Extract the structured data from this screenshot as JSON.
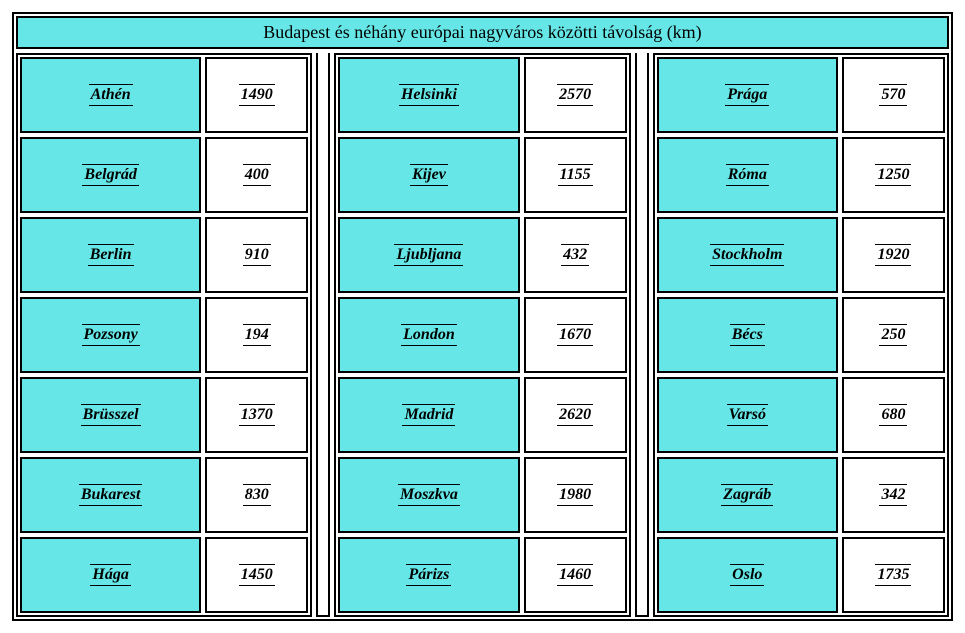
{
  "title": "Budapest és néhány európai nagyváros közötti távolság (km)",
  "colors": {
    "accent": "#66e6e6",
    "border": "#000000",
    "white": "#ffffff"
  },
  "columns": [
    [
      {
        "city": "Athén",
        "distance": "1490"
      },
      {
        "city": "Belgrád",
        "distance": "400"
      },
      {
        "city": "Berlin",
        "distance": "910"
      },
      {
        "city": "Pozsony",
        "distance": "194"
      },
      {
        "city": "Brüsszel",
        "distance": "1370"
      },
      {
        "city": "Bukarest",
        "distance": "830"
      },
      {
        "city": "Hága",
        "distance": "1450"
      }
    ],
    [
      {
        "city": "Helsinki",
        "distance": "2570"
      },
      {
        "city": "Kijev",
        "distance": "1155"
      },
      {
        "city": "Ljubljana",
        "distance": "432"
      },
      {
        "city": "London",
        "distance": "1670"
      },
      {
        "city": "Madrid",
        "distance": "2620"
      },
      {
        "city": "Moszkva",
        "distance": "1980"
      },
      {
        "city": "Párizs",
        "distance": "1460"
      }
    ],
    [
      {
        "city": "Prága",
        "distance": "570"
      },
      {
        "city": "Róma",
        "distance": "1250"
      },
      {
        "city": "Stockholm",
        "distance": "1920"
      },
      {
        "city": "Bécs",
        "distance": "250"
      },
      {
        "city": "Varsó",
        "distance": "680"
      },
      {
        "city": "Zagráb",
        "distance": "342"
      },
      {
        "city": "Oslo",
        "distance": "1735"
      }
    ]
  ]
}
